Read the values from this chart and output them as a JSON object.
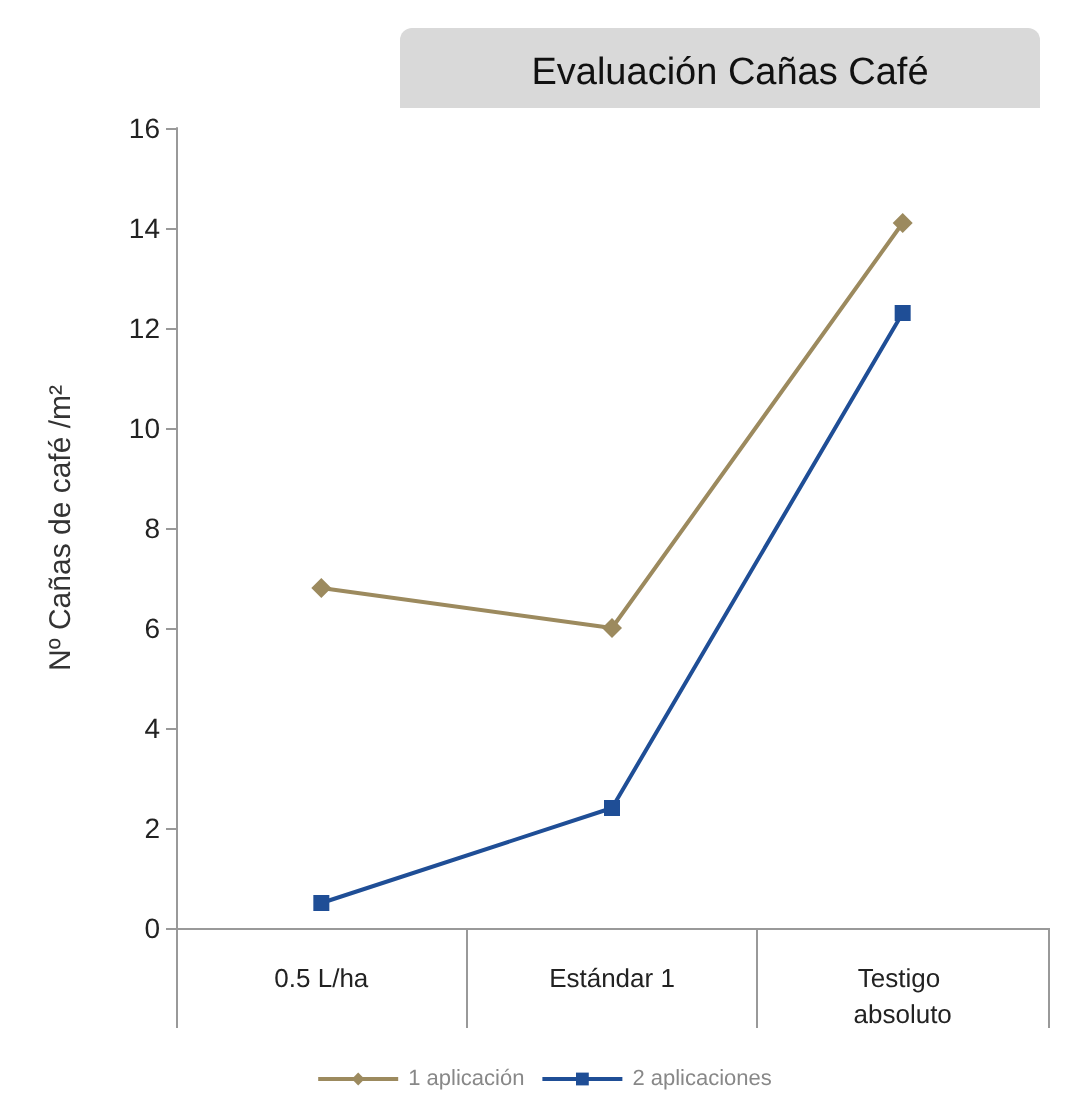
{
  "chart_data": {
    "type": "line",
    "title": "Evaluación Cañas Café",
    "ylabel": "Nº Cañas de café /m²",
    "categories": [
      "0.5 L/ha",
      "Estándar 1",
      "Testigo absoluto"
    ],
    "series": [
      {
        "name": "1 aplicación",
        "color": "#9c8a5e",
        "marker": "diamond",
        "values": [
          6.8,
          6.0,
          14.1
        ]
      },
      {
        "name": "2 aplicaciones",
        "color": "#1f4e96",
        "marker": "square",
        "values": [
          0.5,
          2.4,
          12.3
        ]
      }
    ],
    "ylim": [
      0,
      16
    ],
    "yticks": [
      0,
      2,
      4,
      6,
      8,
      10,
      12,
      14,
      16
    ],
    "grid": false,
    "legend": "bottom",
    "line_style": "solid"
  }
}
